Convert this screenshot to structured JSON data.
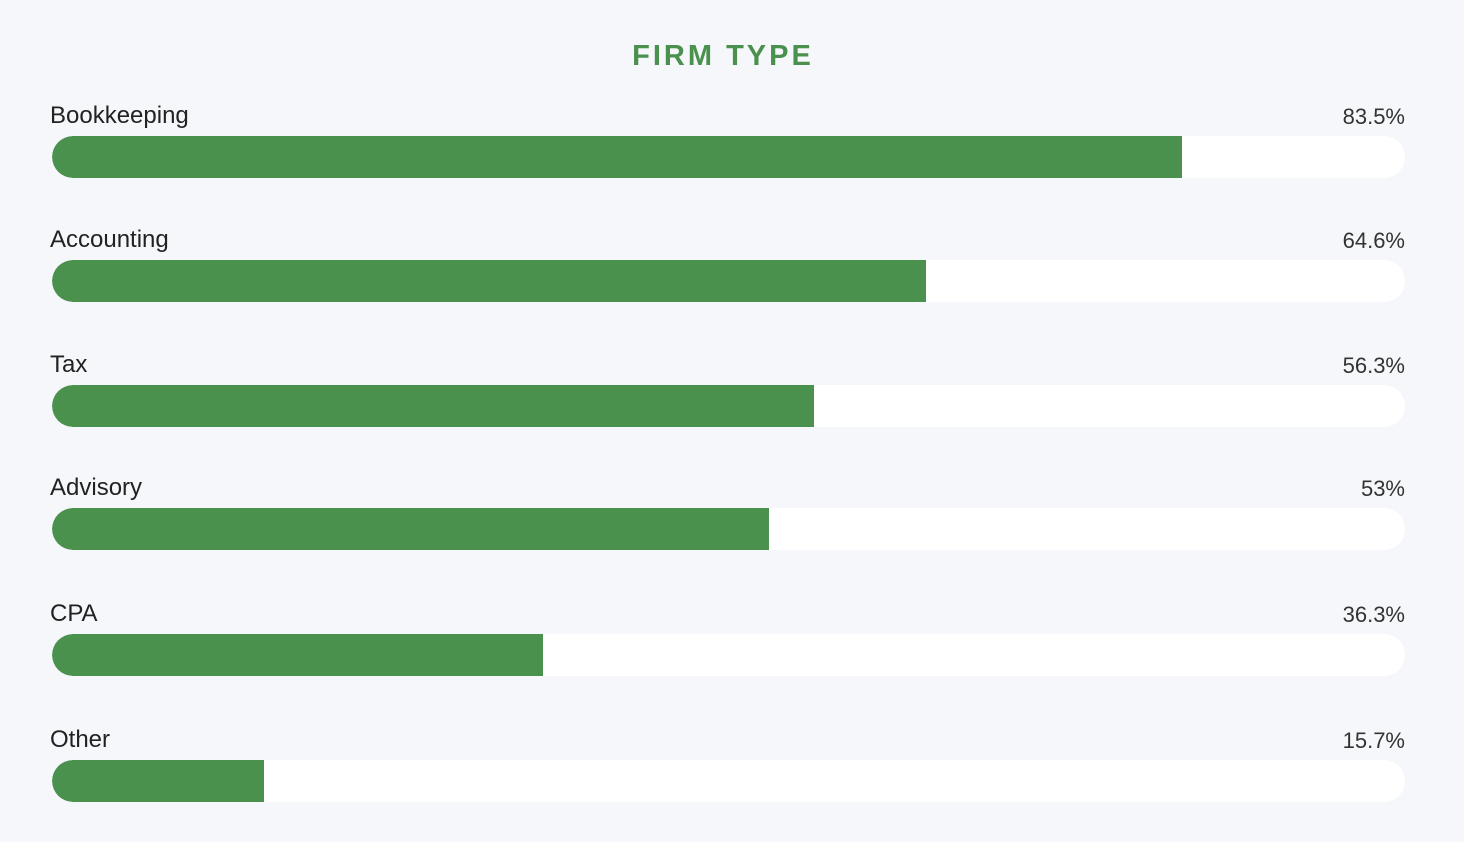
{
  "chart_data": {
    "type": "bar",
    "orientation": "horizontal",
    "title": "FIRM TYPE",
    "categories": [
      "Bookkeeping",
      "Accounting",
      "Tax",
      "Advisory",
      "CPA",
      "Other"
    ],
    "values": [
      83.5,
      64.6,
      56.3,
      53,
      36.3,
      15.7
    ],
    "value_labels": [
      "83.5%",
      "64.6%",
      "56.3%",
      "53%",
      "36.3%",
      "15.7%"
    ],
    "xlim": [
      0,
      100
    ],
    "grid": false,
    "legend": "none",
    "colors": {
      "bar": "#4a914d",
      "track": "#ffffff",
      "background": "#f5f7fa",
      "title": "#4a914d"
    }
  }
}
